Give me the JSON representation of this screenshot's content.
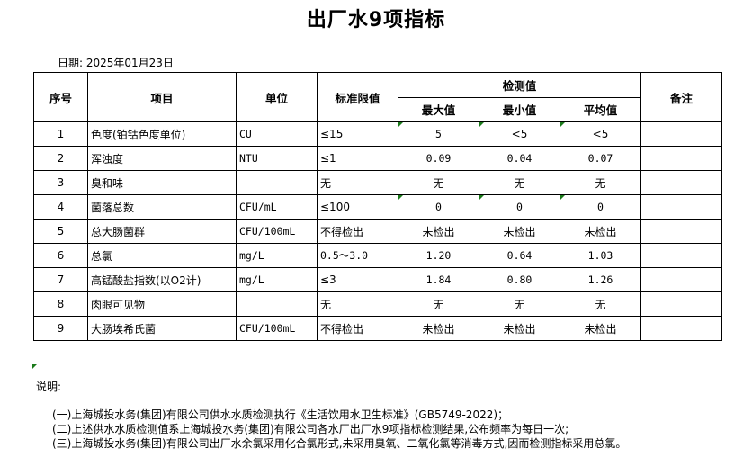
{
  "title": "出厂水9项指标",
  "date": "日期: 2025年01月23日",
  "headers": {
    "no": "序号",
    "item": "项目",
    "unit": "单位",
    "limit": "标准限值",
    "measured": "检测值",
    "max": "最大值",
    "min": "最小值",
    "avg": "平均值",
    "remark": "备注"
  },
  "rows": [
    {
      "no": "1",
      "item": "色度(铂钴色度单位)",
      "unit": "CU",
      "limit": "≤15",
      "max": "5",
      "min": "<5",
      "avg": "<5",
      "remark": ""
    },
    {
      "no": "2",
      "item": "浑浊度",
      "unit": "NTU",
      "limit": "≤1",
      "max": "0.09",
      "min": "0.04",
      "avg": "0.07",
      "remark": ""
    },
    {
      "no": "3",
      "item": "臭和味",
      "unit": "",
      "limit": "无",
      "max": "无",
      "min": "无",
      "avg": "无",
      "remark": ""
    },
    {
      "no": "4",
      "item": "菌落总数",
      "unit": "CFU/mL",
      "limit": "≤100",
      "max": "0",
      "min": "0",
      "avg": "0",
      "remark": ""
    },
    {
      "no": "5",
      "item": "总大肠菌群",
      "unit": "CFU/100mL",
      "limit": "不得检出",
      "max": "未检出",
      "min": "未检出",
      "avg": "未检出",
      "remark": ""
    },
    {
      "no": "6",
      "item": "总氯",
      "unit": "mg/L",
      "limit": "0.5～3.0",
      "max": "1.20",
      "min": "0.64",
      "avg": "1.03",
      "remark": ""
    },
    {
      "no": "7",
      "item": "高锰酸盐指数(以O2计)",
      "unit": "mg/L",
      "limit": "≤3",
      "max": "1.84",
      "min": "0.80",
      "avg": "1.26",
      "remark": ""
    },
    {
      "no": "8",
      "item": "肉眼可见物",
      "unit": "",
      "limit": "无",
      "max": "无",
      "min": "无",
      "avg": "无",
      "remark": ""
    },
    {
      "no": "9",
      "item": "大肠埃希氏菌",
      "unit": "CFU/100mL",
      "limit": "不得检出",
      "max": "未检出",
      "min": "未检出",
      "avg": "未检出",
      "remark": ""
    }
  ],
  "notes": {
    "heading": "说明:",
    "lines": [
      "(一)上海城投水务(集团)有限公司供水水质检测执行《生活饮用水卫生标准》(GB5749-2022)；",
      "(二)上述供水水质检测值系上海城投水务(集团)有限公司各水厂出厂水9项指标检测结果,公布频率为每日一次;",
      "(三)上海城投水务(集团)有限公司出厂水余氯采用化合氯形式,未采用臭氧、二氧化氯等消毒方式,因而检测指标采用总氯。"
    ]
  }
}
